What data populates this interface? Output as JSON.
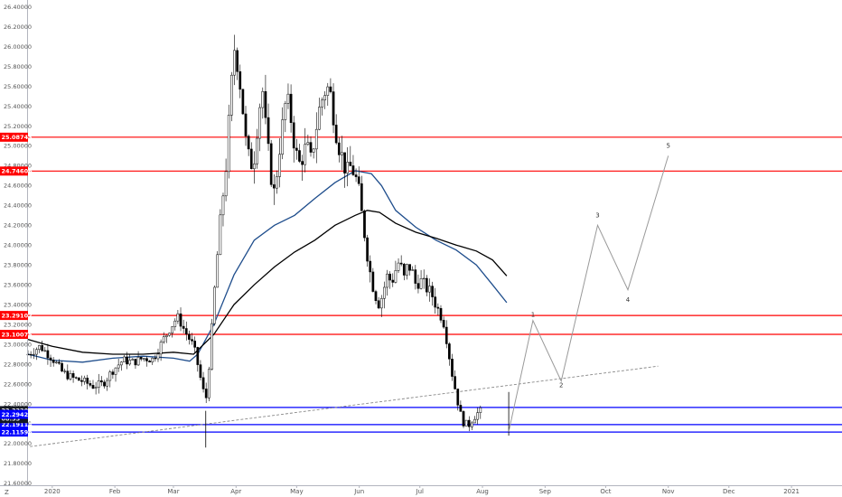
{
  "chart_data": {
    "type": "candlestick",
    "symbol_marker": "Z",
    "y_axis": {
      "side": "left",
      "ylim": [
        21.58,
        26.47
      ],
      "ticks": [
        "21.60000",
        "21.80000",
        "22.00000",
        "22.20000",
        "22.40000",
        "22.60000",
        "22.80000",
        "23.00000",
        "23.20000",
        "23.40000",
        "23.60000",
        "23.80000",
        "24.00000",
        "24.20000",
        "24.40000",
        "24.60000",
        "24.80000",
        "25.00000",
        "25.20000",
        "25.40000",
        "25.60000",
        "25.80000",
        "26.00000",
        "26.20000",
        "26.40000"
      ]
    },
    "x_axis": {
      "labels": [
        {
          "text": "2020",
          "day": 0
        },
        {
          "text": "Feb",
          "day": 31
        },
        {
          "text": "Mar",
          "day": 60
        },
        {
          "text": "Apr",
          "day": 91
        },
        {
          "text": "May",
          "day": 121
        },
        {
          "text": "Jun",
          "day": 152
        },
        {
          "text": "Jul",
          "day": 182
        },
        {
          "text": "Aug",
          "day": 213
        },
        {
          "text": "Sep",
          "day": 244
        },
        {
          "text": "Oct",
          "day": 274
        },
        {
          "text": "Nov",
          "day": 305
        },
        {
          "text": "Dec",
          "day": 335
        },
        {
          "text": "2021",
          "day": 366
        }
      ],
      "xlim": [
        -12,
        391
      ]
    },
    "grid": false,
    "horizontal_levels": [
      {
        "value": 25.08743,
        "label": "25.08743",
        "color": "#ff0000"
      },
      {
        "value": 24.74606,
        "label": "24.74606",
        "color": "#ff0000"
      },
      {
        "value": 23.29102,
        "label": "23.29102",
        "color": "#ff0000"
      },
      {
        "value": 23.10075,
        "label": "23.10075",
        "color": "#ff0000"
      },
      {
        "value": 22.3642,
        "label": "",
        "color": "#0000ff"
      },
      {
        "value": 22.19114,
        "label": "22.19114",
        "color": "#0000ff"
      },
      {
        "value": 22.11596,
        "label": "22.11596",
        "color": "#0000ff"
      }
    ],
    "price_tags": [
      {
        "value": 22.33206,
        "label": "22.33206",
        "color": "#131722"
      },
      {
        "value": 22.2515,
        "label": "08:33",
        "color": "#131722"
      },
      {
        "value": 22.2942,
        "label": "22.29420",
        "color": "#0000ff"
      }
    ],
    "trendline": {
      "style": "dashed",
      "color": "#888888",
      "points": [
        [
          -11,
          21.97
        ],
        [
          300,
          22.78
        ]
      ]
    },
    "moving_averages": [
      {
        "color": "#1e4d8c",
        "points": [
          [
            -12,
            22.9
          ],
          [
            0,
            22.84
          ],
          [
            15,
            22.82
          ],
          [
            30,
            22.86
          ],
          [
            45,
            22.88
          ],
          [
            60,
            22.86
          ],
          [
            68,
            22.83
          ],
          [
            72,
            22.9
          ],
          [
            80,
            23.2
          ],
          [
            90,
            23.7
          ],
          [
            100,
            24.05
          ],
          [
            110,
            24.2
          ],
          [
            120,
            24.3
          ],
          [
            130,
            24.47
          ],
          [
            140,
            24.63
          ],
          [
            150,
            24.75
          ],
          [
            158,
            24.72
          ],
          [
            163,
            24.6
          ],
          [
            170,
            24.35
          ],
          [
            180,
            24.18
          ],
          [
            190,
            24.05
          ],
          [
            200,
            23.95
          ],
          [
            210,
            23.8
          ],
          [
            218,
            23.6
          ],
          [
            225,
            23.42
          ]
        ]
      },
      {
        "color": "#000000",
        "points": [
          [
            -12,
            23.05
          ],
          [
            0,
            22.98
          ],
          [
            15,
            22.92
          ],
          [
            30,
            22.9
          ],
          [
            45,
            22.9
          ],
          [
            60,
            22.92
          ],
          [
            70,
            22.9
          ],
          [
            80,
            23.1
          ],
          [
            90,
            23.4
          ],
          [
            100,
            23.6
          ],
          [
            110,
            23.78
          ],
          [
            120,
            23.93
          ],
          [
            130,
            24.05
          ],
          [
            140,
            24.2
          ],
          [
            150,
            24.3
          ],
          [
            156,
            24.35
          ],
          [
            162,
            24.33
          ],
          [
            170,
            24.22
          ],
          [
            180,
            24.13
          ],
          [
            190,
            24.07
          ],
          [
            200,
            24.0
          ],
          [
            210,
            23.94
          ],
          [
            218,
            23.85
          ],
          [
            225,
            23.69
          ]
        ]
      }
    ],
    "projection": {
      "color": "#999999",
      "points": [
        [
          226,
          22.12
        ],
        [
          238,
          23.24
        ],
        [
          252,
          22.63
        ],
        [
          270,
          24.2
        ],
        [
          285,
          23.55
        ],
        [
          305,
          24.9
        ]
      ],
      "labels": [
        {
          "text": "1",
          "x": 238,
          "y": 23.28
        },
        {
          "text": "2",
          "x": 252,
          "y": 22.57
        },
        {
          "text": "3",
          "x": 270,
          "y": 24.28
        },
        {
          "text": "4",
          "x": 285,
          "y": 23.43
        },
        {
          "text": "5",
          "x": 305,
          "y": 24.98
        }
      ]
    },
    "price_path": [
      [
        -12,
        22.9
      ],
      [
        -6,
        22.98
      ],
      [
        0,
        22.86
      ],
      [
        5,
        22.72
      ],
      [
        10,
        22.66
      ],
      [
        15,
        22.63
      ],
      [
        20,
        22.58
      ],
      [
        25,
        22.6
      ],
      [
        30,
        22.74
      ],
      [
        35,
        22.84
      ],
      [
        40,
        22.82
      ],
      [
        45,
        22.86
      ],
      [
        50,
        22.85
      ],
      [
        55,
        23.05
      ],
      [
        58,
        23.15
      ],
      [
        62,
        23.28
      ],
      [
        66,
        23.12
      ],
      [
        70,
        22.98
      ],
      [
        72,
        22.8
      ],
      [
        74,
        22.6
      ],
      [
        76,
        22.42
      ],
      [
        78,
        22.88
      ],
      [
        80,
        23.45
      ],
      [
        83,
        24.2
      ],
      [
        86,
        24.8
      ],
      [
        88,
        25.4
      ],
      [
        90,
        26.0
      ],
      [
        92,
        25.8
      ],
      [
        94,
        25.45
      ],
      [
        96,
        25.0
      ],
      [
        98,
        24.8
      ],
      [
        100,
        24.9
      ],
      [
        102,
        25.3
      ],
      [
        104,
        25.6
      ],
      [
        106,
        25.1
      ],
      [
        108,
        24.75
      ],
      [
        110,
        24.5
      ],
      [
        112,
        24.9
      ],
      [
        114,
        25.2
      ],
      [
        116,
        25.5
      ],
      [
        118,
        25.3
      ],
      [
        120,
        25.0
      ],
      [
        122,
        24.8
      ],
      [
        124,
        24.9
      ],
      [
        126,
        25.0
      ],
      [
        128,
        24.85
      ],
      [
        130,
        25.1
      ],
      [
        132,
        25.35
      ],
      [
        134,
        25.5
      ],
      [
        136,
        25.6
      ],
      [
        138,
        25.5
      ],
      [
        140,
        25.2
      ],
      [
        142,
        25.0
      ],
      [
        144,
        24.85
      ],
      [
        146,
        24.72
      ],
      [
        148,
        24.8
      ],
      [
        150,
        24.7
      ],
      [
        152,
        24.5
      ],
      [
        154,
        24.2
      ],
      [
        156,
        23.9
      ],
      [
        158,
        23.65
      ],
      [
        160,
        23.5
      ],
      [
        162,
        23.4
      ],
      [
        164,
        23.55
      ],
      [
        166,
        23.7
      ],
      [
        168,
        23.62
      ],
      [
        170,
        23.75
      ],
      [
        172,
        23.85
      ],
      [
        174,
        23.65
      ],
      [
        176,
        23.8
      ],
      [
        178,
        23.75
      ],
      [
        180,
        23.6
      ],
      [
        182,
        23.65
      ],
      [
        184,
        23.6
      ],
      [
        186,
        23.55
      ],
      [
        188,
        23.5
      ],
      [
        190,
        23.4
      ],
      [
        192,
        23.3
      ],
      [
        194,
        23.2
      ],
      [
        196,
        22.95
      ],
      [
        198,
        22.7
      ],
      [
        200,
        22.5
      ],
      [
        202,
        22.3
      ],
      [
        204,
        22.2
      ],
      [
        206,
        22.18
      ],
      [
        208,
        22.25
      ],
      [
        210,
        22.3
      ],
      [
        212,
        22.32
      ],
      [
        213,
        22.33
      ]
    ]
  }
}
